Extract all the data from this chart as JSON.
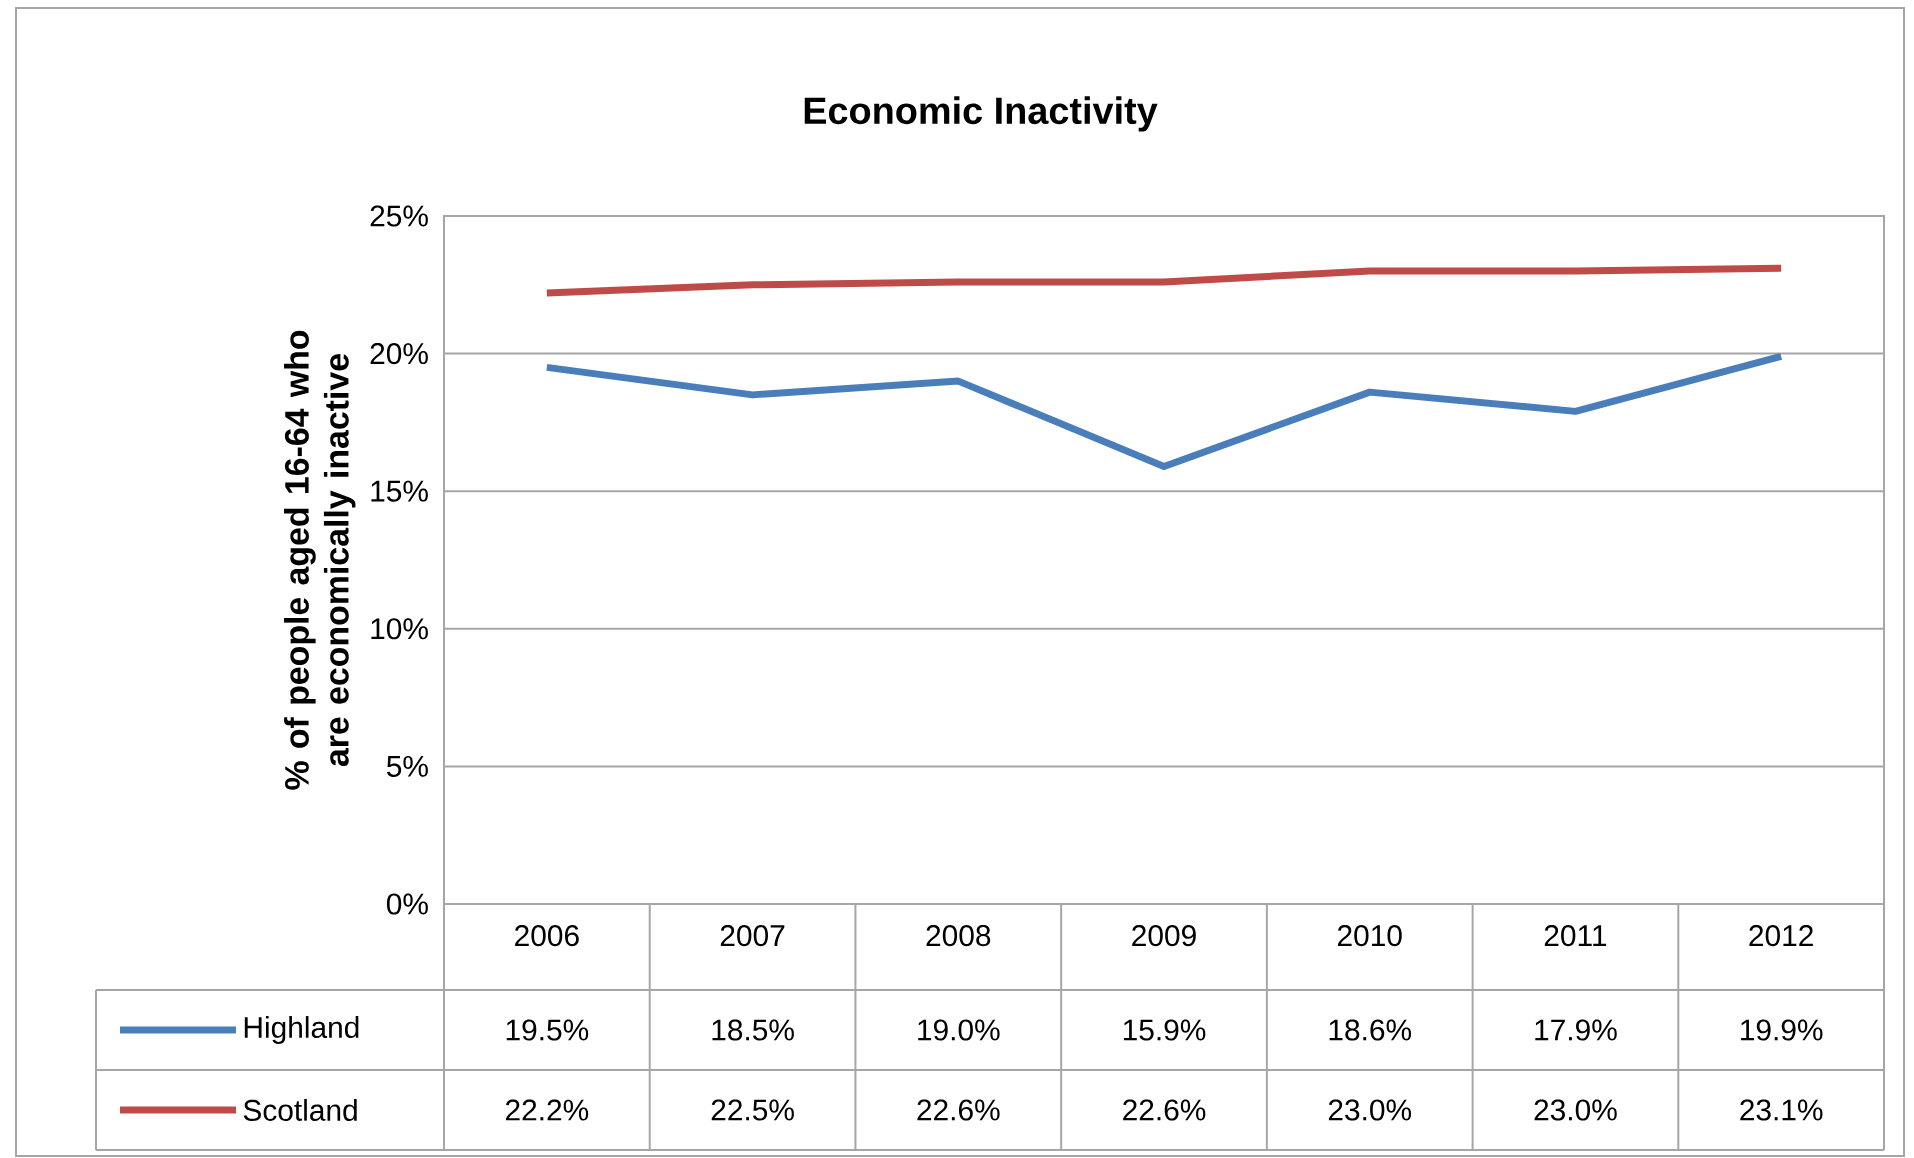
{
  "chart_data": {
    "type": "line",
    "title": "Economic Inactivity",
    "ylabel": "% of people aged 16-64 who are economically inactive",
    "categories": [
      "2006",
      "2007",
      "2008",
      "2009",
      "2010",
      "2011",
      "2012"
    ],
    "series": [
      {
        "name": "Highland",
        "color": "#4a7ebb",
        "values": [
          19.5,
          18.5,
          19.0,
          15.9,
          18.6,
          17.9,
          19.9
        ],
        "value_labels": [
          "19.5%",
          "18.5%",
          "19.0%",
          "15.9%",
          "18.6%",
          "17.9%",
          "19.9%"
        ]
      },
      {
        "name": "Scotland",
        "color": "#be4b48",
        "values": [
          22.2,
          22.5,
          22.6,
          22.6,
          23.0,
          23.0,
          23.1
        ],
        "value_labels": [
          "22.2%",
          "22.5%",
          "22.6%",
          "22.6%",
          "23.0%",
          "23.0%",
          "23.1%"
        ]
      }
    ],
    "ylim": [
      0,
      25
    ],
    "yticks": [
      {
        "value": 0,
        "label": "0%"
      },
      {
        "value": 5,
        "label": "5%"
      },
      {
        "value": 10,
        "label": "10%"
      },
      {
        "value": 15,
        "label": "15%"
      },
      {
        "value": 20,
        "label": "20%"
      },
      {
        "value": 25,
        "label": "25%"
      }
    ],
    "grid": "y",
    "legend": "bottom"
  }
}
